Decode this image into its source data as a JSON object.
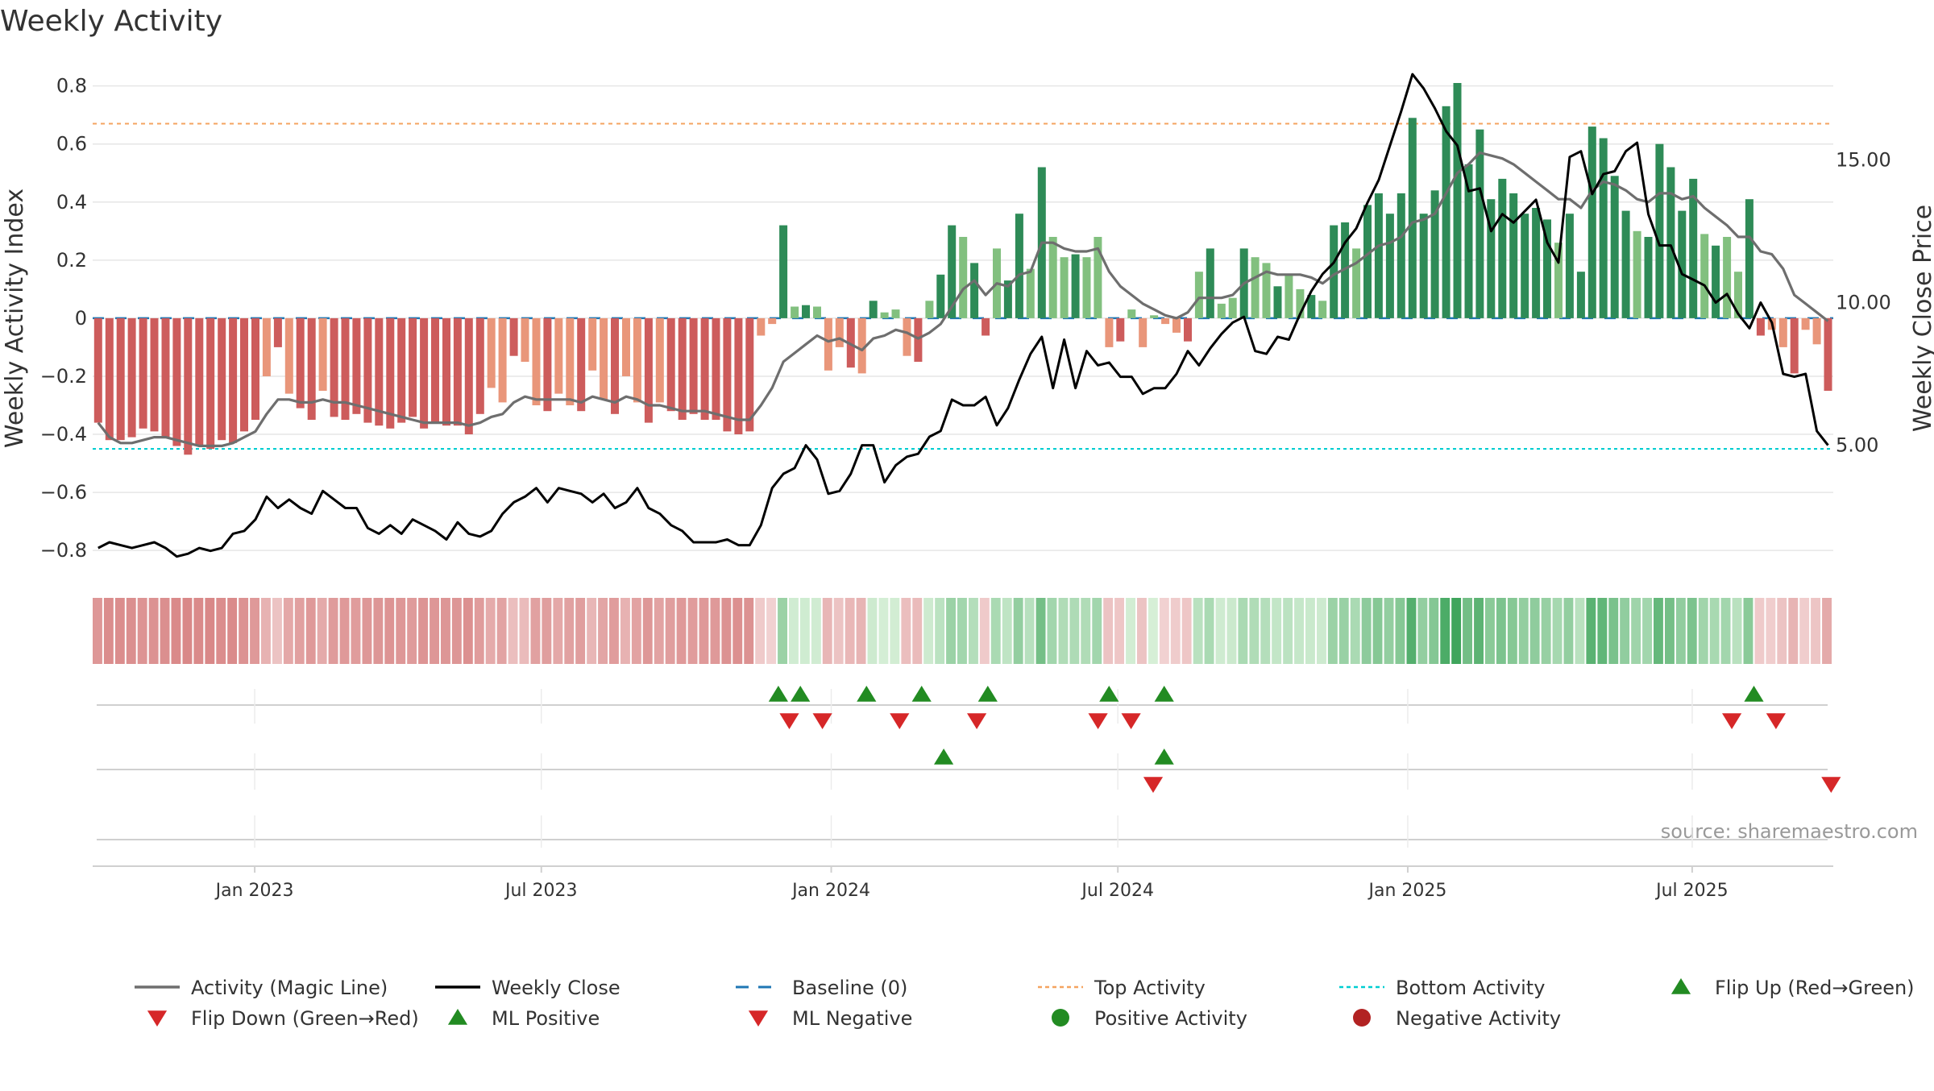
{
  "chart_data": {
    "type": "bar",
    "title": "Weekly Activity",
    "ylabel": "Weekly Activity Index",
    "y2label": "Weekly Close Price",
    "source": "source: sharemaestro.com",
    "ylim": [
      -0.88,
      0.86
    ],
    "y2lim": [
      0.5,
      18.2
    ],
    "yticks": [
      0.8,
      0.6,
      0.4,
      0.2,
      0,
      -0.2,
      -0.4,
      -0.6,
      -0.8
    ],
    "ytick_labels": [
      "0.8",
      "0.6",
      "0.4",
      "0.2",
      "0",
      "−0.2",
      "−0.4",
      "−0.6",
      "−0.8"
    ],
    "y2ticks": [
      15,
      10,
      5
    ],
    "y2tick_labels": [
      "15.00",
      "10.00",
      "5.00"
    ],
    "x_start_week": -14.7,
    "x_end_week": 143.2,
    "xticks": [
      {
        "label": "Jan 2023",
        "week": 0
      },
      {
        "label": "Jul 2023",
        "week": 26
      },
      {
        "label": "Jan 2024",
        "week": 52.3
      },
      {
        "label": "Jul 2024",
        "week": 78.3
      },
      {
        "label": "Jan 2025",
        "week": 104.6
      },
      {
        "label": "Jul 2025",
        "week": 130.4
      }
    ],
    "top_activity": 0.67,
    "bottom_activity": -0.45,
    "baseline": 0,
    "activity": [
      -0.36,
      -0.42,
      -0.42,
      -0.41,
      -0.38,
      -0.39,
      -0.41,
      -0.44,
      -0.47,
      -0.44,
      -0.45,
      -0.42,
      -0.43,
      -0.39,
      -0.35,
      -0.2,
      -0.1,
      -0.26,
      -0.31,
      -0.35,
      -0.25,
      -0.34,
      -0.35,
      -0.33,
      -0.36,
      -0.37,
      -0.38,
      -0.36,
      -0.34,
      -0.38,
      -0.36,
      -0.37,
      -0.37,
      -0.4,
      -0.33,
      -0.24,
      -0.29,
      -0.13,
      -0.15,
      -0.3,
      -0.32,
      -0.26,
      -0.3,
      -0.32,
      -0.18,
      -0.28,
      -0.33,
      -0.2,
      -0.29,
      -0.36,
      -0.29,
      -0.32,
      -0.35,
      -0.33,
      -0.35,
      -0.35,
      -0.39,
      -0.4,
      -0.39,
      -0.06,
      -0.02,
      0.32,
      0.04,
      0.045,
      0.04,
      -0.18,
      -0.1,
      -0.17,
      -0.19,
      0.06,
      0.02,
      0.03,
      -0.13,
      -0.15,
      0.06,
      0.15,
      0.32,
      0.28,
      0.19,
      -0.06,
      0.24,
      0.13,
      0.36,
      0.17,
      0.52,
      0.28,
      0.21,
      0.22,
      0.21,
      0.28,
      -0.1,
      -0.08,
      0.03,
      -0.1,
      0.01,
      -0.02,
      -0.05,
      -0.08,
      0.16,
      0.24,
      0.05,
      0.07,
      0.24,
      0.21,
      0.19,
      0.11,
      0.15,
      0.1,
      0.08,
      0.06,
      0.32,
      0.33,
      0.24,
      0.39,
      0.43,
      0.36,
      0.43,
      0.69,
      0.36,
      0.44,
      0.73,
      0.81,
      0.53,
      0.65,
      0.41,
      0.48,
      0.43,
      0.36,
      0.38,
      0.34,
      0.26,
      0.36,
      0.16,
      0.66,
      0.62,
      0.49,
      0.37,
      0.3,
      0.28,
      0.6,
      0.52,
      0.37,
      0.48,
      0.29,
      0.25,
      0.28,
      0.16,
      0.41,
      -0.06,
      -0.04,
      -0.1,
      -0.19,
      -0.04,
      -0.09,
      -0.25
    ],
    "magic_line": [
      -0.36,
      -0.41,
      -0.43,
      -0.43,
      -0.42,
      -0.41,
      -0.41,
      -0.42,
      -0.43,
      -0.44,
      -0.44,
      -0.44,
      -0.43,
      -0.41,
      -0.39,
      -0.33,
      -0.28,
      -0.28,
      -0.29,
      -0.29,
      -0.28,
      -0.29,
      -0.29,
      -0.3,
      -0.31,
      -0.32,
      -0.33,
      -0.34,
      -0.35,
      -0.36,
      -0.36,
      -0.36,
      -0.36,
      -0.37,
      -0.36,
      -0.34,
      -0.33,
      -0.29,
      -0.27,
      -0.28,
      -0.28,
      -0.28,
      -0.28,
      -0.29,
      -0.27,
      -0.28,
      -0.29,
      -0.27,
      -0.28,
      -0.3,
      -0.3,
      -0.31,
      -0.32,
      -0.32,
      -0.32,
      -0.33,
      -0.34,
      -0.35,
      -0.35,
      -0.3,
      -0.24,
      -0.15,
      -0.12,
      -0.09,
      -0.06,
      -0.08,
      -0.07,
      -0.09,
      -0.11,
      -0.07,
      -0.06,
      -0.04,
      -0.05,
      -0.07,
      -0.05,
      -0.02,
      0.04,
      0.1,
      0.13,
      0.08,
      0.12,
      0.11,
      0.15,
      0.16,
      0.26,
      0.26,
      0.24,
      0.23,
      0.23,
      0.24,
      0.16,
      0.11,
      0.08,
      0.05,
      0.03,
      0.01,
      0.0,
      0.02,
      0.07,
      0.07,
      0.07,
      0.08,
      0.12,
      0.14,
      0.16,
      0.15,
      0.15,
      0.15,
      0.14,
      0.12,
      0.15,
      0.17,
      0.19,
      0.22,
      0.25,
      0.26,
      0.28,
      0.33,
      0.34,
      0.36,
      0.43,
      0.5,
      0.53,
      0.57,
      0.56,
      0.55,
      0.53,
      0.5,
      0.47,
      0.44,
      0.41,
      0.41,
      0.38,
      0.44,
      0.47,
      0.46,
      0.44,
      0.41,
      0.4,
      0.43,
      0.43,
      0.41,
      0.42,
      0.38,
      0.35,
      0.32,
      0.28,
      0.28,
      0.23,
      0.22,
      0.17,
      0.08,
      0.05,
      0.02,
      -0.01
    ],
    "weekly_close": [
      1.4,
      1.6,
      1.5,
      1.4,
      1.5,
      1.6,
      1.4,
      1.1,
      1.2,
      1.4,
      1.3,
      1.4,
      1.9,
      2.0,
      2.4,
      3.2,
      2.8,
      3.1,
      2.8,
      2.6,
      3.4,
      3.1,
      2.8,
      2.8,
      2.1,
      1.9,
      2.2,
      1.9,
      2.4,
      2.2,
      2.0,
      1.7,
      2.3,
      1.9,
      1.8,
      2.0,
      2.6,
      3.0,
      3.2,
      3.5,
      3.0,
      3.5,
      3.4,
      3.3,
      3.0,
      3.3,
      2.8,
      3.0,
      3.5,
      2.8,
      2.6,
      2.2,
      2.0,
      1.6,
      1.6,
      1.6,
      1.7,
      1.5,
      1.5,
      2.2,
      3.5,
      4.0,
      4.2,
      5.0,
      4.5,
      3.3,
      3.4,
      4.0,
      5.0,
      5.0,
      3.7,
      4.3,
      4.6,
      4.7,
      5.3,
      5.5,
      6.6,
      6.4,
      6.4,
      6.7,
      5.7,
      6.3,
      7.3,
      8.2,
      8.8,
      7.0,
      8.7,
      7.0,
      8.3,
      7.8,
      7.9,
      7.4,
      7.4,
      6.8,
      7.0,
      7.0,
      7.5,
      8.3,
      7.8,
      8.4,
      8.9,
      9.3,
      9.5,
      8.3,
      8.2,
      8.8,
      8.7,
      9.6,
      10.4,
      11.0,
      11.4,
      12.1,
      12.6,
      13.5,
      14.3,
      15.5,
      16.7,
      18.0,
      17.5,
      16.8,
      16.0,
      15.5,
      13.9,
      14.0,
      12.5,
      13.1,
      12.8,
      13.2,
      13.6,
      12.1,
      11.4,
      15.1,
      15.3,
      13.8,
      14.5,
      14.6,
      15.3,
      15.6,
      13.1,
      12.0,
      12.0,
      11.0,
      10.8,
      10.6,
      10.0,
      10.3,
      9.6,
      9.1,
      10.0,
      9.3,
      7.5,
      7.4,
      7.5,
      5.5,
      5.0
    ],
    "ml_positive_weeks": [
      47.5,
      49.5,
      55.5,
      60.5,
      66.5,
      77.5,
      82.5,
      136
    ],
    "ml_negative_weeks": [
      48.5,
      51.5,
      58.5,
      65.5,
      76.5,
      79.5,
      134,
      138
    ],
    "flip_up_weeks": [
      62.5,
      82.5
    ],
    "flip_down_weeks": [
      81.5,
      143
    ],
    "colors": {
      "strong_green": "#2e8b57",
      "light_green": "#82c07f",
      "strong_red": "#cd5c5c",
      "light_red": "#e9967a",
      "magic_line": "#6e6e6e",
      "close_line": "#000000",
      "baseline": "#1f77b4",
      "top_activity": "#f4a460",
      "bottom_activity": "#00ced1",
      "marker_up": "#228b22",
      "marker_down": "#d62728",
      "positive_dot": "#228b22",
      "negative_dot": "#b22222",
      "grid": "#e6e6e6"
    },
    "legend": [
      {
        "label": "Activity (Magic Line)",
        "type": "line",
        "color": "#6e6e6e"
      },
      {
        "label": "Weekly Close",
        "type": "line",
        "color": "#000000"
      },
      {
        "label": "Baseline (0)",
        "type": "dash",
        "color": "#1f77b4"
      },
      {
        "label": "Top Activity",
        "type": "dot",
        "color": "#f4a460"
      },
      {
        "label": "Bottom Activity",
        "type": "dot",
        "color": "#00ced1"
      },
      {
        "label": "Flip Up (Red→Green)",
        "type": "tri-up",
        "color": "#228b22"
      },
      {
        "label": "Flip Down (Green→Red)",
        "type": "tri-down",
        "color": "#d62728"
      },
      {
        "label": "ML Positive",
        "type": "tri-up",
        "color": "#228b22"
      },
      {
        "label": "ML Negative",
        "type": "tri-down",
        "color": "#d62728"
      },
      {
        "label": "Positive Activity",
        "type": "circle",
        "color": "#228b22"
      },
      {
        "label": "Negative Activity",
        "type": "circle",
        "color": "#b22222"
      }
    ]
  }
}
